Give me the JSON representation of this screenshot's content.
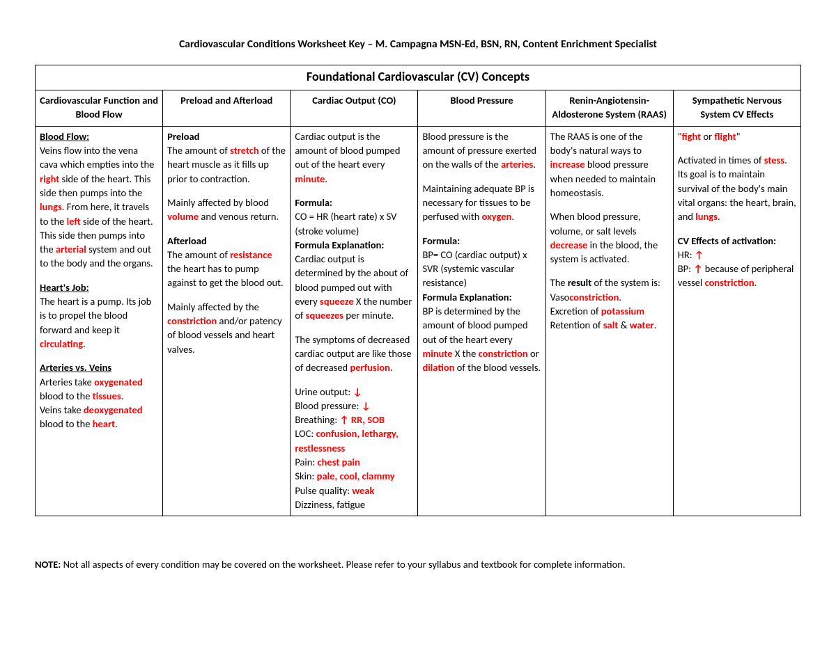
{
  "doc": {
    "title": "Cardiovascular Conditions Worksheet Key – M. Campagna MSN-Ed, BSN, RN, Content Enrichment Specialist",
    "table_title": "Foundational Cardiovascular (CV) Concepts",
    "note_label": "NOTE:",
    "note_text": "  Not all aspects of every condition may be covered on the worksheet.  Please refer to your syllabus and textbook for complete information."
  },
  "cols": {
    "c1": "Cardiovascular Function and Blood Flow",
    "c2": "Preload and Afterload",
    "c3": "Cardiac Output (CO)",
    "c4": "Blood Pressure",
    "c5": "Renin-Angiotensin-Aldosterone System (RAAS)",
    "c6": "Sympathetic Nervous System CV Effects"
  },
  "c1": {
    "h1": "Blood Flow:",
    "p1a": "Veins flow into the vena cava which empties into the ",
    "p1_right": "right",
    "p1b": " side of the heart.  This side then pumps into the ",
    "p1_lungs": "lungs",
    "p1c": ".  From here, it travels to the ",
    "p1_left": "left",
    "p1d": " side of the heart.  This side then pumps into the ",
    "p1_arterial": "arterial",
    "p1e": " system and out to the body and the organs.",
    "h2": "Heart's Job:",
    "p2a": "The heart is a pump.  Its job is to propel the blood forward and keep it ",
    "p2_circ": "circulating",
    "p2b": ".",
    "h3": "Arteries vs. Veins",
    "p3a": "Arteries take ",
    "p3_oxy": "oxygenated",
    "p3b": " blood to the ",
    "p3_tissues": "tissues",
    "p3c": ".",
    "p4a": "Veins take ",
    "p4_deoxy": "deoxygenated",
    "p4b": " blood to the ",
    "p4_heart": "heart",
    "p4c": "."
  },
  "c2": {
    "h1": "Preload",
    "p1a": "The amount of ",
    "p1_stretch": "stretch",
    "p1b": " of the heart muscle as it fills up prior to contraction.",
    "p2a": "Mainly affected by blood ",
    "p2_volume": "volume",
    "p2b": " and venous return.",
    "h2": "Afterload",
    "p3a": "The amount of ",
    "p3_res": "resistance",
    "p3b": " the heart has to pump against to get the blood out.",
    "p4a": "Mainly affected by the ",
    "p4_con": "constriction",
    "p4b": " and/or patency of blood vessels and heart valves."
  },
  "c3": {
    "p1a": "Cardiac output is the amount of blood pumped out of the heart every ",
    "p1_min": "minute",
    "p1b": ".",
    "h2": "Formula:",
    "p2": "CO = HR (heart rate) x SV (stroke volume)",
    "h3": "Formula Explanation:",
    "p3a": "Cardiac output is determined by the about of blood pumped out with every ",
    "p3_sq1": "squeeze",
    "p3b": " X the number of ",
    "p3_sq2": "squeezes",
    "p3c": " per minute.",
    "p4a": "The symptoms of decreased cardiac output are like those of decreased ",
    "p4_perf": "perfusion",
    "p4b": ".",
    "l_urine": "Urine output: ",
    "v_urine": "↓",
    "l_bp": "Blood pressure: ",
    "v_bp": "↓",
    "l_breath": "Breathing: ",
    "v_breath": "↑ RR, SOB",
    "l_loc": "LOC: ",
    "v_loc": "confusion, lethargy, restlessness",
    "l_pain": "Pain: ",
    "v_pain": "chest pain",
    "l_skin": "Skin: ",
    "v_skin": "pale, cool, clammy",
    "l_pulse": "Pulse quality: ",
    "v_pulse": "weak",
    "l_dizz": "Dizziness, fatigue"
  },
  "c4": {
    "p1a": "Blood pressure is the amount of pressure exerted on the walls of the ",
    "p1_art": "arteries",
    "p1b": ".",
    "p2a": "Maintaining adequate BP is necessary for tissues to be perfused with ",
    "p2_oxy": "oxygen",
    "p2b": ".",
    "h3": "Formula:",
    "p3": "BP= CO (cardiac output) x SVR (systemic vascular resistance)",
    "h4": "Formula Explanation:",
    "p4a": "BP is determined by the amount of blood pumped out of the heart every ",
    "p4_min": "minute",
    "p4b": " X the ",
    "p4_con": "constriction",
    "p4c": " or ",
    "p4_dil": "dilation",
    "p4d": " of the blood vessels."
  },
  "c5": {
    "p1a": "The RAAS is one of the body's natural ways to ",
    "p1_inc": "increase",
    "p1b": " blood pressure when needed to maintain homeostasis.",
    "p2a": "When blood pressure, volume, or salt levels ",
    "p2_dec": "decrease",
    "p2b": " in the blood, the system is activated.",
    "p3a": "The ",
    "p3_result": "result",
    "p3b": " of the system is:",
    "p4a": "Vaso",
    "p4_con": "constriction",
    "p4b": ".",
    "p5a": "Excretion of ",
    "p5_k": "potassium",
    "p6a": "Retention of ",
    "p6_salt": "salt",
    "p6b": " & ",
    "p6_water": "water",
    "p6c": "."
  },
  "c6": {
    "p1a": "\"",
    "p1_fight": "fight",
    "p1b": " or ",
    "p1_flight": "flight",
    "p1c": "\"",
    "p2a": "Activated in times of ",
    "p2_stess": "stess",
    "p2b": ".  Its goal is to maintain survival of the body's main vital organs: the heart, brain, and ",
    "p2_lungs": "lungs",
    "p2c": ".",
    "h3": "CV Effects of activation:",
    "l_hr": "HR: ",
    "v_hr": "↑",
    "l_bp": "BP: ",
    "v_bp": "↑",
    "p4a": " because of peripheral vessel ",
    "p4_con": "constriction",
    "p4b": "."
  }
}
